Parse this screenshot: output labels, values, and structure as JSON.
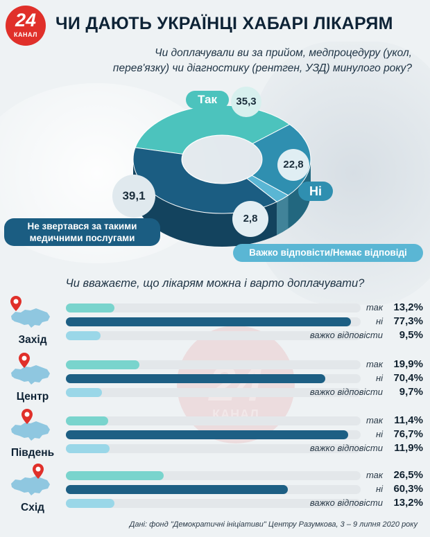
{
  "logo": {
    "number": "24",
    "word": "КАНАЛ"
  },
  "title": "ЧИ ДАЮТЬ УКРАЇНЦІ ХАБАРІ ЛІКАРЯМ",
  "question1_line1": "Чи доплачували ви за прийом, медпроцедуру (укол,",
  "question1_line2": "перев'язку) чи діагностику (рентген, УЗД) минулого року?",
  "question2": "Чи вважаєте, що лікарям можна і варто доплачувати?",
  "source": "Дані: фонд \"Демократичні ініціативи\" Центру Разумкова, 3 – 9 липня 2020 року",
  "colors": {
    "tak": "#4cc3bd",
    "ni": "#2f8fb0",
    "hard": "#5ab6d4",
    "none": "#1b5d82",
    "bar_yes": "#79d4cd",
    "bar_no": "#1d5f84",
    "bar_hard": "#9ad7e8",
    "logo": "#e0302a"
  },
  "chart_data": [
    {
      "type": "pie",
      "variant": "3d-donut",
      "slices": [
        {
          "label": "Так",
          "value": 35.3,
          "display": "35,3"
        },
        {
          "label": "Ні",
          "value": 22.8,
          "display": "22,8"
        },
        {
          "label": "Важко відповісти/Немає відповіді",
          "value": 2.8,
          "display": "2,8"
        },
        {
          "label_line1": "Не звертався за такими",
          "label_line2": "медичними послугами",
          "value": 39.1,
          "display": "39,1"
        }
      ]
    },
    {
      "type": "bar",
      "orientation": "horizontal",
      "unit": "%",
      "xlim": [
        0,
        80
      ],
      "regions": [
        {
          "name": "Захід",
          "bars": [
            {
              "label": "так",
              "value": 13.2,
              "display": "13,2%"
            },
            {
              "label": "ні",
              "value": 77.3,
              "display": "77,3%"
            },
            {
              "label": "важко відповісти",
              "value": 9.5,
              "display": "9,5%"
            }
          ]
        },
        {
          "name": "Центр",
          "bars": [
            {
              "label": "так",
              "value": 19.9,
              "display": "19,9%"
            },
            {
              "label": "ні",
              "value": 70.4,
              "display": "70,4%"
            },
            {
              "label": "важко відповісти",
              "value": 9.7,
              "display": "9,7%"
            }
          ]
        },
        {
          "name": "Південь",
          "bars": [
            {
              "label": "так",
              "value": 11.4,
              "display": "11,4%"
            },
            {
              "label": "ні",
              "value": 76.7,
              "display": "76,7%"
            },
            {
              "label": "важко відповісти",
              "value": 11.9,
              "display": "11,9%"
            }
          ]
        },
        {
          "name": "Схід",
          "bars": [
            {
              "label": "так",
              "value": 26.5,
              "display": "26,5%"
            },
            {
              "label": "ні",
              "value": 60.3,
              "display": "60,3%"
            },
            {
              "label": "важко відповісти",
              "value": 13.2,
              "display": "13,2%"
            }
          ]
        }
      ]
    }
  ]
}
